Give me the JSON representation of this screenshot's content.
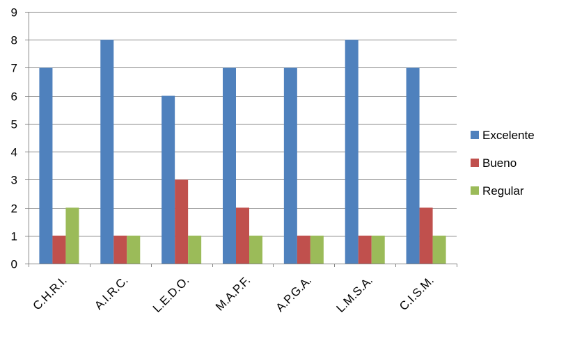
{
  "chart_data": {
    "type": "bar",
    "title": "",
    "xlabel": "",
    "ylabel": "",
    "categories": [
      "C.H.R.I.",
      "A.I.R.C.",
      "L.E.D.O.",
      "M.A.P.F.",
      "A.P.G.A.",
      "L.M.S.A.",
      "C.I.S.M."
    ],
    "series": [
      {
        "name": "Excelente",
        "values": [
          7,
          8,
          6,
          7,
          7,
          8,
          7
        ],
        "color": "#4F81BD"
      },
      {
        "name": "Bueno",
        "values": [
          1,
          1,
          3,
          2,
          1,
          1,
          2
        ],
        "color": "#C0504D"
      },
      {
        "name": "Regular",
        "values": [
          2,
          1,
          1,
          1,
          1,
          1,
          1
        ],
        "color": "#9BBB59"
      }
    ],
    "ylim": [
      0,
      9
    ],
    "yticks": [
      0,
      1,
      2,
      3,
      4,
      5,
      6,
      7,
      8,
      9
    ],
    "grid": true,
    "legend_position": "right"
  }
}
